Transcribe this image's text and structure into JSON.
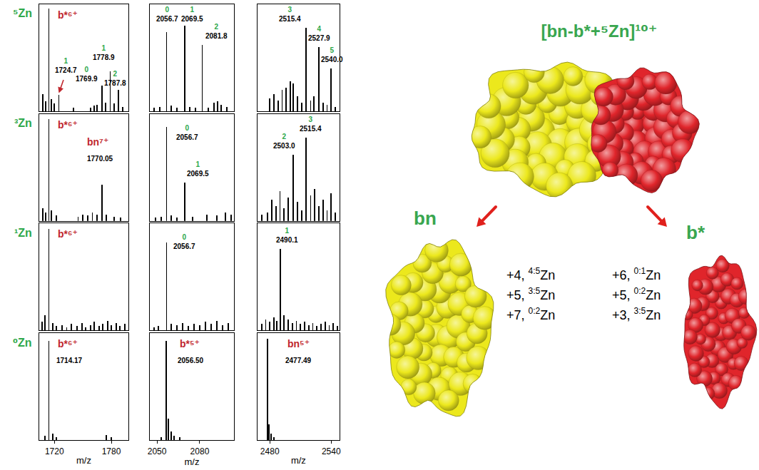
{
  "row_labels": [
    "⁵Zn",
    "³Zn",
    "¹Zn",
    "⁰Zn"
  ],
  "chart_data": [
    {
      "type": "bar",
      "color": "#000000",
      "xlim": [
        1704,
        1798
      ],
      "ylim": [
        0,
        100
      ],
      "tick_labels": false,
      "x": [
        1708,
        1711,
        1714.2,
        1717,
        1720,
        1724.7,
        1740,
        1758,
        1762,
        1765,
        1769.9,
        1774,
        1778.9,
        1783,
        1787.8,
        1792
      ],
      "values": [
        16,
        9,
        96,
        11,
        7,
        15,
        3,
        3,
        5,
        6,
        24,
        8,
        37,
        7,
        20,
        4
      ],
      "annotations": [
        {
          "x": 1734,
          "y": 84,
          "text": "b*⁶⁺",
          "color": "#c0272d"
        },
        {
          "x": 1732,
          "y": 34,
          "zn": "1",
          "text": "1724.7",
          "color": "#000000"
        },
        {
          "x": 1724.7,
          "y": 17,
          "marker": "arrow",
          "color": "#c0272d"
        },
        {
          "x": 1754,
          "y": 26,
          "zn": "0",
          "text": "1769.9",
          "color": "#000000"
        },
        {
          "x": 1772,
          "y": 46,
          "zn": "1",
          "text": "1778.9",
          "color": "#000000"
        },
        {
          "x": 1784,
          "y": 22,
          "zn": "2",
          "text": "1787.8",
          "color": "#000000"
        }
      ]
    },
    {
      "type": "bar",
      "color": "#000000",
      "xlim": [
        2045,
        2104
      ],
      "ylim": [
        0,
        100
      ],
      "tick_labels": false,
      "x": [
        2048,
        2052,
        2056.7,
        2060,
        2064,
        2069.5,
        2073,
        2077,
        2081.8,
        2086,
        2090,
        2092.5,
        2095,
        2099
      ],
      "values": [
        3,
        4,
        74,
        5,
        3,
        80,
        4,
        3,
        62,
        3,
        8,
        9,
        6,
        4
      ],
      "annotations": [
        {
          "x": 2057,
          "y": 82,
          "zn": "0",
          "text": "2056.7",
          "color": "#000000"
        },
        {
          "x": 2075,
          "y": 82,
          "zn": "1",
          "text": "2069.5",
          "color": "#000000"
        },
        {
          "x": 2092,
          "y": 66,
          "zn": "2",
          "text": "2081.8",
          "color": "#000000"
        }
      ]
    },
    {
      "type": "bar",
      "color": "#000000",
      "xlim": [
        2468,
        2548
      ],
      "ylim": [
        0,
        100
      ],
      "tick_labels": false,
      "x": [
        2480,
        2484,
        2488,
        2492,
        2496,
        2500,
        2503,
        2507,
        2511,
        2515.4,
        2520,
        2523,
        2527.9,
        2532,
        2536,
        2540,
        2544
      ],
      "values": [
        12,
        16,
        10,
        20,
        22,
        28,
        26,
        14,
        8,
        78,
        10,
        14,
        60,
        8,
        6,
        40,
        4
      ],
      "annotations": [
        {
          "x": 2500,
          "y": 82,
          "zn": "3",
          "text": "2515.4",
          "color": "#000000"
        },
        {
          "x": 2528,
          "y": 64,
          "zn": "4",
          "text": "2527.9",
          "color": "#000000"
        },
        {
          "x": 2541,
          "y": 44,
          "zn": "5",
          "text": "2540.0",
          "color": "#000000"
        }
      ]
    },
    {
      "type": "bar",
      "color": "#000000",
      "xlim": [
        1704,
        1798
      ],
      "ylim": [
        0,
        100
      ],
      "tick_labels": false,
      "x": [
        1708,
        1711,
        1714.2,
        1717,
        1722,
        1745,
        1750,
        1755,
        1760,
        1765,
        1770.05,
        1775,
        1783,
        1790
      ],
      "values": [
        12,
        8,
        95,
        10,
        5,
        4,
        6,
        5,
        8,
        6,
        34,
        6,
        4,
        3
      ],
      "annotations": [
        {
          "x": 1734,
          "y": 84,
          "text": "b*⁶⁺",
          "color": "#c0272d"
        },
        {
          "x": 1766,
          "y": 68,
          "text": "bn⁷⁺",
          "color": "#c0272d"
        },
        {
          "x": 1768,
          "y": 54,
          "text": "1770.05",
          "color": "#000000"
        }
      ]
    },
    {
      "type": "bar",
      "color": "#000000",
      "xlim": [
        2045,
        2104
      ],
      "ylim": [
        0,
        100
      ],
      "tick_labels": false,
      "x": [
        2049,
        2053,
        2056.7,
        2060,
        2064,
        2069.5,
        2075,
        2085,
        2092,
        2098,
        2102
      ],
      "values": [
        3,
        4,
        88,
        5,
        3,
        36,
        4,
        6,
        5,
        8,
        6
      ],
      "annotations": [
        {
          "x": 2071,
          "y": 74,
          "zn": "0",
          "text": "2056.7",
          "color": "#000000"
        },
        {
          "x": 2079,
          "y": 40,
          "zn": "1",
          "text": "2069.5",
          "color": "#000000"
        }
      ]
    },
    {
      "type": "bar",
      "color": "#000000",
      "xlim": [
        2468,
        2548
      ],
      "ylim": [
        0,
        100
      ],
      "tick_labels": false,
      "x": [
        2472,
        2478,
        2482,
        2486,
        2490,
        2494,
        2498,
        2503,
        2507,
        2511,
        2515.4,
        2520,
        2524,
        2528,
        2532,
        2536,
        2540,
        2544
      ],
      "values": [
        6,
        8,
        20,
        14,
        28,
        12,
        22,
        62,
        18,
        10,
        78,
        24,
        30,
        14,
        20,
        10,
        26,
        8
      ],
      "annotations": [
        {
          "x": 2494,
          "y": 66,
          "zn": "2",
          "text": "2503.0",
          "color": "#000000"
        },
        {
          "x": 2520,
          "y": 82,
          "zn": "3",
          "text": "2515.4",
          "color": "#000000"
        }
      ]
    },
    {
      "type": "bar",
      "color": "#000000",
      "xlim": [
        1704,
        1798
      ],
      "ylim": [
        0,
        100
      ],
      "tick_labels": false,
      "x": [
        1707,
        1710,
        1714.2,
        1718,
        1722,
        1728,
        1733,
        1738,
        1744,
        1749,
        1753,
        1758,
        1762,
        1767,
        1771,
        1776,
        1780,
        1785,
        1789,
        1794
      ],
      "values": [
        8,
        14,
        95,
        7,
        4,
        5,
        3,
        6,
        4,
        7,
        3,
        5,
        8,
        4,
        6,
        9,
        5,
        7,
        4,
        6
      ],
      "annotations": [
        {
          "x": 1734,
          "y": 84,
          "text": "b*⁶⁺",
          "color": "#c0272d"
        }
      ]
    },
    {
      "type": "bar",
      "color": "#000000",
      "xlim": [
        2045,
        2104
      ],
      "ylim": [
        0,
        100
      ],
      "tick_labels": false,
      "x": [
        2048,
        2051,
        2056.7,
        2060,
        2064,
        2068,
        2072,
        2076,
        2080,
        2084,
        2088,
        2092,
        2096,
        2100
      ],
      "values": [
        3,
        4,
        82,
        6,
        5,
        7,
        4,
        6,
        5,
        8,
        6,
        9,
        5,
        7
      ],
      "annotations": [
        {
          "x": 2069,
          "y": 74,
          "zn": "0",
          "text": "2056.7",
          "color": "#000000"
        }
      ]
    },
    {
      "type": "bar",
      "color": "#000000",
      "xlim": [
        2468,
        2548
      ],
      "ylim": [
        0,
        100
      ],
      "tick_labels": false,
      "x": [
        2472,
        2476,
        2480,
        2484,
        2487,
        2490.1,
        2494,
        2498,
        2502,
        2506,
        2510,
        2514,
        2518,
        2522,
        2526,
        2530,
        2534,
        2538,
        2542,
        2546
      ],
      "values": [
        6,
        10,
        8,
        12,
        9,
        76,
        14,
        10,
        7,
        9,
        6,
        8,
        5,
        7,
        4,
        6,
        8,
        5,
        7,
        4
      ],
      "annotations": [
        {
          "x": 2497,
          "y": 80,
          "zn": "1",
          "text": "2490.1",
          "color": "#000000"
        }
      ]
    },
    {
      "type": "bar",
      "color": "#000000",
      "xlim": [
        1704,
        1798
      ],
      "ylim": [
        0,
        100
      ],
      "tick_labels": "x",
      "xticks": [
        1720,
        1780
      ],
      "xlabel": "m/z",
      "x": [
        1710,
        1714.17,
        1718,
        1722,
        1775,
        1780
      ],
      "values": [
        4,
        93,
        6,
        3,
        5,
        3
      ],
      "annotations": [
        {
          "x": 1734,
          "y": 84,
          "text": "b*⁶⁺",
          "color": "#c0272d"
        },
        {
          "x": 1736,
          "y": 70,
          "text": "1714.17",
          "color": "#000000"
        }
      ]
    },
    {
      "type": "bar",
      "color": "#000000",
      "xlim": [
        2045,
        2104
      ],
      "ylim": [
        0,
        100
      ],
      "tick_labels": "x",
      "xticks": [
        2050,
        2080
      ],
      "xlabel": "m/z",
      "x": [
        2053,
        2056.5,
        2058,
        2060,
        2062,
        2066
      ],
      "values": [
        3,
        93,
        20,
        8,
        4,
        3
      ],
      "annotations": [
        {
          "x": 2073,
          "y": 84,
          "text": "b*⁵⁺",
          "color": "#c0272d"
        },
        {
          "x": 2074,
          "y": 70,
          "text": "2056.50",
          "color": "#000000"
        }
      ]
    },
    {
      "type": "bar",
      "color": "#000000",
      "xlim": [
        2468,
        2548
      ],
      "ylim": [
        0,
        100
      ],
      "tick_labels": "x",
      "xticks": [
        2480,
        2540
      ],
      "xlabel": "m/z",
      "x": [
        2477.49,
        2479,
        2481,
        2484
      ],
      "values": [
        95,
        15,
        6,
        3
      ],
      "annotations": [
        {
          "x": 2508,
          "y": 84,
          "text": "bn⁵⁺",
          "color": "#c0272d"
        },
        {
          "x": 2508,
          "y": 70,
          "text": "2477.49",
          "color": "#000000"
        }
      ]
    }
  ],
  "diagram": {
    "title": "[bn-b*+⁵Zn]¹⁰⁺",
    "fragments": [
      {
        "name": "bn",
        "color": "#ece81c",
        "states": [
          {
            "text": "+4, ",
            "sup": "4:5",
            "suffix": "Zn"
          },
          {
            "text": "+5, ",
            "sup": "3:5",
            "suffix": "Zn"
          },
          {
            "text": "+7, ",
            "sup": "0:2",
            "suffix": "Zn"
          }
        ]
      },
      {
        "name": "b*",
        "color": "#e0252b",
        "states": [
          {
            "text": "+6, ",
            "sup": "0:1",
            "suffix": "Zn"
          },
          {
            "text": "+5, ",
            "sup": "0:2",
            "suffix": "Zn"
          },
          {
            "text": "+3, ",
            "sup": "3:5",
            "suffix": "Zn"
          }
        ]
      }
    ]
  }
}
